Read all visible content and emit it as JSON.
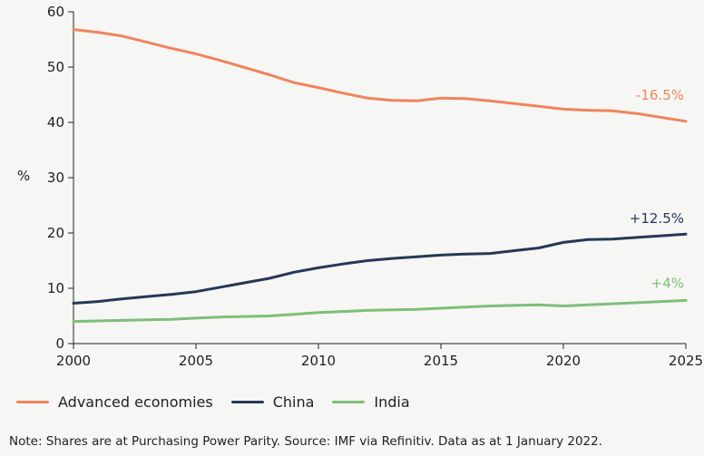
{
  "chart_data": {
    "type": "line",
    "title": "",
    "xlabel": "",
    "ylabel": "%",
    "xlim": [
      2000,
      2025
    ],
    "ylim": [
      0,
      60
    ],
    "x_ticks": [
      2000,
      2005,
      2010,
      2015,
      2020,
      2025
    ],
    "y_ticks": [
      0,
      10,
      20,
      30,
      40,
      50,
      60
    ],
    "x": [
      2000,
      2001,
      2002,
      2003,
      2004,
      2005,
      2006,
      2007,
      2008,
      2009,
      2010,
      2011,
      2012,
      2013,
      2014,
      2015,
      2016,
      2017,
      2018,
      2019,
      2020,
      2021,
      2022,
      2023,
      2024,
      2025
    ],
    "series": [
      {
        "name": "Advanced economies",
        "color": "#f0845c",
        "values": [
          56.8,
          56.3,
          55.6,
          54.5,
          53.4,
          52.4,
          51.2,
          49.9,
          48.6,
          47.2,
          46.3,
          45.3,
          44.4,
          44.0,
          43.9,
          44.4,
          44.3,
          43.9,
          43.4,
          42.9,
          42.4,
          42.2,
          42.1,
          41.6,
          40.9,
          40.2
        ],
        "end_label": "-16.5%"
      },
      {
        "name": "China",
        "color": "#253858",
        "values": [
          7.3,
          7.6,
          8.1,
          8.5,
          8.9,
          9.4,
          10.2,
          11.0,
          11.8,
          12.9,
          13.7,
          14.4,
          15.0,
          15.4,
          15.7,
          16.0,
          16.2,
          16.3,
          16.8,
          17.3,
          18.3,
          18.8,
          18.9,
          19.2,
          19.5,
          19.8
        ],
        "end_label": "+12.5%"
      },
      {
        "name": "India",
        "color": "#7cbf77",
        "values": [
          4.0,
          4.1,
          4.2,
          4.3,
          4.4,
          4.6,
          4.8,
          4.9,
          5.0,
          5.3,
          5.6,
          5.8,
          6.0,
          6.1,
          6.2,
          6.4,
          6.6,
          6.8,
          6.9,
          7.0,
          6.8,
          7.0,
          7.2,
          7.4,
          7.6,
          7.8
        ],
        "end_label": "+4%"
      }
    ]
  },
  "note": "Note: Shares are at Purchasing Power Parity. Source: IMF via Refinitiv. Data as at 1 January 2022."
}
